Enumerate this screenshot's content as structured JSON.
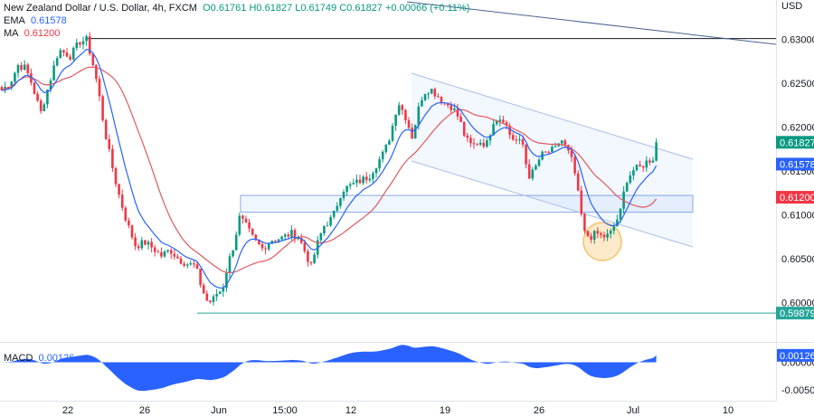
{
  "header": {
    "symbol_title": "New Zealand Dollar / U.S. Dollar, 4h, FXCM",
    "open": "O0.61761",
    "high": "H0.61827",
    "low": "L0.61749",
    "close": "C0.61827",
    "change": "+0.00066 (+0.11%)",
    "ema_label": "EMA",
    "ema_value": "0.61578",
    "ma_label": "MA",
    "ma_value": "0.61200",
    "macd_label": "MACD",
    "macd_value": "0.00126"
  },
  "currency": "USD",
  "colors": {
    "up": "#089981",
    "down": "#f23645",
    "ema": "#2962ff",
    "ma": "#e0595f",
    "macd_fill": "#2962ff",
    "support_line": "#26a69a",
    "channel": "#3179f5",
    "highlight": "#f5c26b"
  },
  "chart_data": {
    "type": "candlestick",
    "timeframe": "4h",
    "x_ticks": [
      "22",
      "26",
      "Jun",
      "15:00",
      "12",
      "19",
      "26",
      "Jul",
      "10"
    ],
    "y_ticks": [
      "0.63000",
      "0.62500",
      "0.62000",
      "0.61500",
      "0.61000",
      "0.60500",
      "0.60000"
    ],
    "ylim": [
      0.5955,
      0.6345
    ],
    "price_labels": [
      {
        "label": "0.61827",
        "value": 0.61827,
        "color": "#089981"
      },
      {
        "label": "0.61578",
        "value": 0.61578,
        "color": "#2962ff"
      },
      {
        "label": "0.61200",
        "value": 0.612,
        "color": "#f23645"
      },
      {
        "label": "0.59879",
        "value": 0.59879,
        "color": "#26a69a"
      }
    ],
    "resistance_level": 0.6301,
    "support_level": 0.59879,
    "consolidation_zone": [
      0.6105,
      0.612
    ],
    "macd": {
      "y_ticks": [
        "0.00000",
        "-0.00500"
      ],
      "ylim": [
        -0.0068,
        0.0032
      ],
      "last_label": "0.00126",
      "last_value": 0.00126
    }
  }
}
